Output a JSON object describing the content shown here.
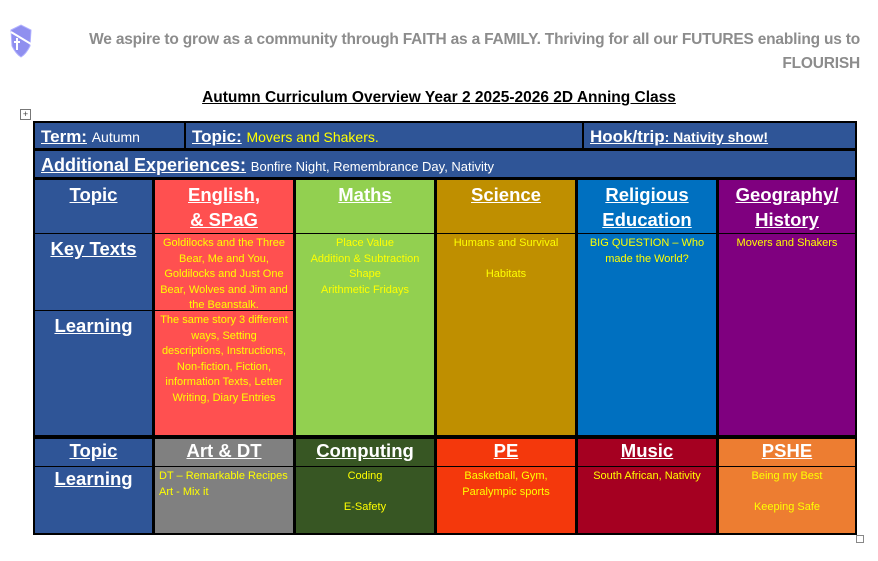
{
  "header": {
    "motto": "We aspire to grow as a community through FAITH as a FAMILY. Thriving for all our FUTURES enabling us to FLOURISH",
    "logo_icon": "shield-cross-icon"
  },
  "document_title": "Autumn Curriculum Overview Year 2 2025-2026 2D Anning Class",
  "overview": {
    "term_label": "Term:",
    "term_value": "Autumn",
    "topic_label": "Topic:",
    "topic_value": "Movers and Shakers.",
    "hook_label": "Hook/trip",
    "hook_value": ": Nativity show!",
    "additional_label": "Additional Experiences:",
    "additional_value": "Bonfire Night, Remembrance Day, Nativity"
  },
  "row_labels": {
    "topic": "Topic",
    "key_texts": "Key Texts",
    "learning": "Learning",
    "topic2": "Topic",
    "learning2": "Learning"
  },
  "subjects_top": [
    {
      "name": "English,\n& SPaG",
      "key_texts": "Goldilocks and the Three Bear, Me and You, Goldilocks and Just One Bear, Wolves and Jim and the Beanstalk.",
      "learning": "The same story 3 different ways, Setting descriptions, Instructions, Non-fiction, Fiction, information Texts, Letter Writing, Diary Entries",
      "color": "#FF5050"
    },
    {
      "name": "Maths",
      "content": "Place Value\nAddition & Subtraction\nShape\nArithmetic Fridays",
      "color": "#92D050"
    },
    {
      "name": "Science",
      "content": "Humans and Survival\n\nHabitats",
      "color": "#BF8F00"
    },
    {
      "name": "Religious Education",
      "content": "BIG QUESTION – Who made the World?",
      "color": "#0070C0"
    },
    {
      "name": "Geography/ History",
      "content": "Movers and Shakers",
      "color": "#7F007F"
    }
  ],
  "subjects_bottom": [
    {
      "name": "Art & DT",
      "content": "DT – Remarkable Recipes\nArt - Mix it",
      "color": "#808080"
    },
    {
      "name": "Computing",
      "content": "Coding\n\nE-Safety",
      "color": "#375623"
    },
    {
      "name": "PE",
      "content": "Basketball, Gym, Paralympic sports",
      "color": "#F4380C"
    },
    {
      "name": "Music",
      "content": "South African, Nativity",
      "color": "#A50021"
    },
    {
      "name": "PSHE",
      "content": "Being my Best\n\nKeeping Safe",
      "color": "#ED7D31"
    }
  ],
  "colors": {
    "label_blue": "#2F5597",
    "text_yellow": "#FFFF00"
  }
}
